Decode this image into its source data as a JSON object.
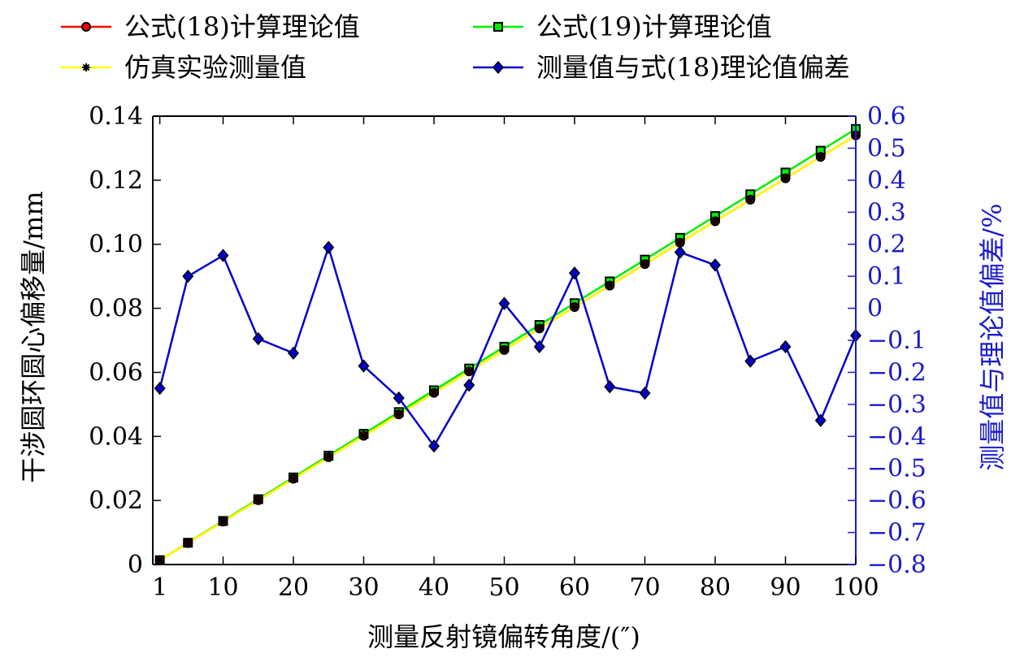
{
  "chart_data": {
    "type": "line",
    "xlabel": "测量反射镜偏转角度/(″)",
    "ylabel_left": "干涉圆环圆心偏移量/mm",
    "ylabel_right": "测量值与理论值偏差/%",
    "x_ticks": [
      1,
      10,
      20,
      30,
      40,
      50,
      60,
      70,
      80,
      90,
      100
    ],
    "xlim": [
      0,
      100
    ],
    "ylim_left": [
      0,
      0.14
    ],
    "ylim_right": [
      -0.8,
      0.6
    ],
    "y_left_ticks": [
      "0",
      "0.02",
      "0.04",
      "0.06",
      "0.08",
      "0.10",
      "0.12",
      "0.14"
    ],
    "y_left_tick_values": [
      0,
      0.02,
      0.04,
      0.06,
      0.08,
      0.1,
      0.12,
      0.14
    ],
    "y_right_ticks": [
      "0.6",
      "0.5",
      "0.4",
      "0.3",
      "0.2",
      "0.1",
      "0",
      "−0.1",
      "−0.2",
      "−0.3",
      "−0.4",
      "−0.5",
      "−0.6",
      "−0.7",
      "−0.8"
    ],
    "y_right_tick_values": [
      0.6,
      0.5,
      0.4,
      0.3,
      0.2,
      0.1,
      0,
      -0.1,
      -0.2,
      -0.3,
      -0.4,
      -0.5,
      -0.6,
      -0.7,
      -0.8
    ],
    "x": [
      1,
      5,
      10,
      15,
      20,
      25,
      30,
      35,
      40,
      45,
      50,
      55,
      60,
      65,
      70,
      75,
      80,
      85,
      90,
      95,
      100
    ],
    "series": [
      {
        "name": "公式(18)计算理论值",
        "axis": "left",
        "color": "#ff0000",
        "marker": "circle",
        "values": [
          0.00134,
          0.0067,
          0.0134,
          0.0201,
          0.0268,
          0.0335,
          0.0402,
          0.0469,
          0.0536,
          0.0603,
          0.067,
          0.0737,
          0.0804,
          0.0871,
          0.0938,
          0.1005,
          0.1072,
          0.1139,
          0.1206,
          0.1273,
          0.134
        ]
      },
      {
        "name": "公式(19)计算理论值",
        "axis": "left",
        "color": "#00ee00",
        "marker": "square",
        "values": [
          0.00136,
          0.0068,
          0.0136,
          0.0204,
          0.0272,
          0.034,
          0.0408,
          0.0476,
          0.0544,
          0.0612,
          0.068,
          0.0748,
          0.0816,
          0.0884,
          0.0952,
          0.102,
          0.1088,
          0.1156,
          0.1224,
          0.1292,
          0.136
        ]
      },
      {
        "name": "仿真实验测量值",
        "axis": "left",
        "color": "#ffff00",
        "marker": "star",
        "values": [
          0.00134,
          0.0067,
          0.0134,
          0.0201,
          0.0268,
          0.0335,
          0.0402,
          0.0469,
          0.0536,
          0.0603,
          0.067,
          0.0737,
          0.0804,
          0.0871,
          0.0938,
          0.1005,
          0.1072,
          0.1139,
          0.1206,
          0.1273,
          0.134
        ]
      },
      {
        "name": "测量值与式(18)理论值偏差",
        "axis": "right",
        "color": "#0000cc",
        "marker": "diamond",
        "values": [
          -0.25,
          0.1,
          0.165,
          -0.095,
          -0.14,
          0.19,
          -0.18,
          -0.28,
          -0.43,
          -0.24,
          0.015,
          -0.12,
          0.11,
          -0.245,
          -0.265,
          0.175,
          0.135,
          -0.165,
          -0.12,
          -0.35,
          -0.085
        ]
      }
    ],
    "legend_position": "top",
    "grid": false
  }
}
